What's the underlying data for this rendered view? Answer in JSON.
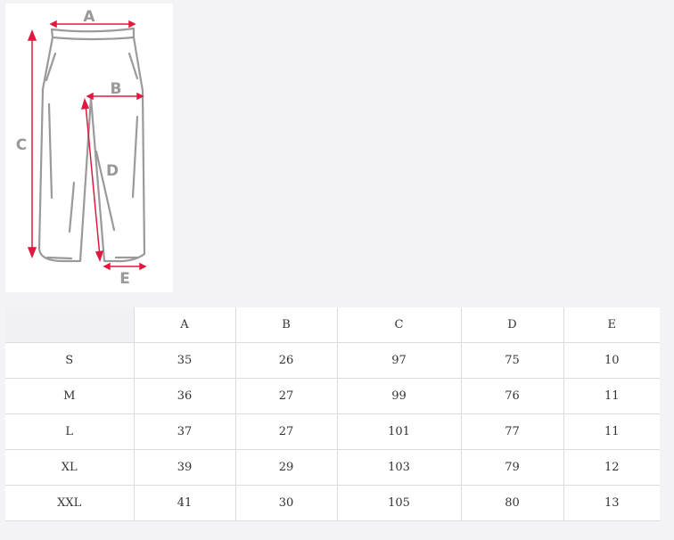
{
  "diagram": {
    "labels": [
      "A",
      "B",
      "C",
      "D",
      "E"
    ],
    "colors": {
      "arrow": "#e0193f",
      "outline": "#9a9a9a",
      "label": "#999999"
    }
  },
  "table": {
    "headers": [
      "",
      "A",
      "B",
      "C",
      "D",
      "E"
    ],
    "rows": [
      [
        "S",
        "35",
        "26",
        "97",
        "75",
        "10"
      ],
      [
        "M",
        "36",
        "27",
        "99",
        "76",
        "11"
      ],
      [
        "L",
        "37",
        "27",
        "101",
        "77",
        "11"
      ],
      [
        "XL",
        "39",
        "29",
        "103",
        "79",
        "12"
      ],
      [
        "XXL",
        "41",
        "30",
        "105",
        "80",
        "13"
      ]
    ]
  }
}
